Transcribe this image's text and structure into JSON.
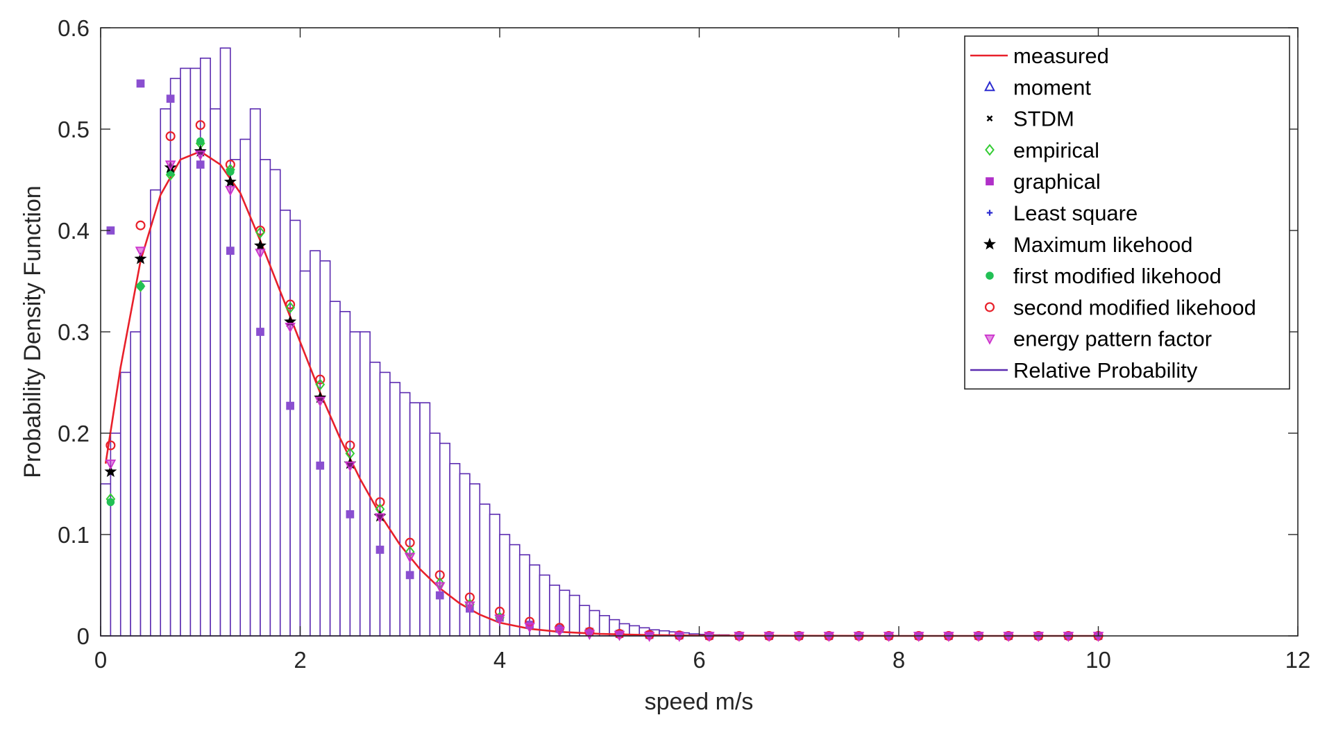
{
  "chart_data": {
    "type": "line",
    "xlabel": "speed m/s",
    "ylabel": "Probability Density Function",
    "xlim": [
      0,
      12
    ],
    "ylim": [
      0,
      0.6
    ],
    "x_ticks": [
      "0",
      "2",
      "4",
      "6",
      "8",
      "10",
      "12"
    ],
    "y_ticks": [
      "0",
      "0.1",
      "0.2",
      "0.3",
      "0.4",
      "0.5",
      "0.6"
    ],
    "grid": false,
    "legend_position": "top-right",
    "legend": [
      {
        "label": "measured",
        "symbol": "line",
        "color": "#e8202a"
      },
      {
        "label": "moment",
        "symbol": "triangle",
        "color": "#2b2bd0"
      },
      {
        "label": "STDM",
        "symbol": "x",
        "color": "#000000"
      },
      {
        "label": "empirical",
        "symbol": "diamond",
        "color": "#33cc33"
      },
      {
        "label": "graphical",
        "symbol": "square",
        "color": "#b030c8"
      },
      {
        "label": "Least square",
        "symbol": "plus",
        "color": "#2b2bd0"
      },
      {
        "label": "Maximum likehood",
        "symbol": "star",
        "color": "#000000"
      },
      {
        "label": "first modified likehood",
        "symbol": "asterisk",
        "color": "#22c055"
      },
      {
        "label": "second modified likehood",
        "symbol": "circle",
        "color": "#e8202a"
      },
      {
        "label": "energy pattern factor",
        "symbol": "triangle-down",
        "color": "#cc33cc"
      },
      {
        "label": "Relative Probability",
        "symbol": "line",
        "color": "#5b2bb0"
      }
    ],
    "histogram": {
      "name": "Relative Probability",
      "color": "#5b2bb0",
      "bin_width": 0.1,
      "bin_start": 0.0,
      "values": [
        0.15,
        0.2,
        0.26,
        0.3,
        0.35,
        0.44,
        0.52,
        0.55,
        0.56,
        0.56,
        0.57,
        0.52,
        0.58,
        0.47,
        0.49,
        0.52,
        0.47,
        0.46,
        0.42,
        0.41,
        0.36,
        0.38,
        0.37,
        0.33,
        0.32,
        0.3,
        0.3,
        0.27,
        0.26,
        0.25,
        0.24,
        0.23,
        0.23,
        0.2,
        0.19,
        0.17,
        0.16,
        0.15,
        0.13,
        0.12,
        0.1,
        0.09,
        0.08,
        0.07,
        0.06,
        0.05,
        0.045,
        0.04,
        0.03,
        0.025,
        0.02,
        0.016,
        0.012,
        0.01,
        0.008,
        0.006,
        0.005,
        0.004,
        0.003,
        0.002,
        0.0015,
        0.001,
        0.001,
        0.0005
      ]
    },
    "series": [
      {
        "name": "measured",
        "style": "line",
        "color": "#e8202a",
        "x": [
          0.05,
          0.2,
          0.4,
          0.6,
          0.8,
          1.0,
          1.2,
          1.4,
          1.6,
          1.8,
          2.0,
          2.2,
          2.4,
          2.6,
          2.8,
          3.0,
          3.2,
          3.4,
          3.6,
          3.8,
          4.0,
          4.3,
          4.6,
          5.0,
          5.5,
          6.0,
          7.0,
          8.0,
          9.0,
          10.0
        ],
        "y": [
          0.17,
          0.265,
          0.37,
          0.435,
          0.47,
          0.478,
          0.465,
          0.437,
          0.39,
          0.34,
          0.29,
          0.24,
          0.195,
          0.155,
          0.12,
          0.09,
          0.066,
          0.047,
          0.032,
          0.021,
          0.013,
          0.007,
          0.004,
          0.002,
          0.0008,
          0.0003,
          0.0001,
          0.0,
          0.0,
          0.0
        ]
      },
      {
        "name": "graphical",
        "style": "marker",
        "marker": "square",
        "color": "#8a4fd0",
        "x": [
          0.1,
          0.4,
          0.7,
          1.0,
          1.3,
          1.6,
          1.9,
          2.2,
          2.5,
          2.8,
          3.1,
          3.4,
          3.7,
          4.0,
          4.3,
          4.6,
          4.9,
          5.2,
          5.5,
          5.8,
          6.1,
          6.4,
          6.7,
          7.0,
          7.3,
          7.6,
          7.9,
          8.2,
          8.5,
          8.8,
          9.1,
          9.4,
          9.7,
          10.0
        ],
        "y": [
          0.4,
          0.545,
          0.53,
          0.465,
          0.38,
          0.3,
          0.227,
          0.168,
          0.12,
          0.085,
          0.06,
          0.04,
          0.027,
          0.018,
          0.011,
          0.007,
          0.004,
          0.002,
          0.001,
          0.0005,
          0.0,
          0.0,
          0.0,
          0.0,
          0.0,
          0.0,
          0.0,
          0.0,
          0.0,
          0.0,
          0.0,
          0.0,
          0.0,
          0.0
        ]
      },
      {
        "name": "second modified likehood",
        "style": "marker",
        "marker": "circle",
        "color": "#e8202a",
        "x": [
          0.1,
          0.4,
          0.7,
          1.0,
          1.3,
          1.6,
          1.9,
          2.2,
          2.5,
          2.8,
          3.1,
          3.4,
          3.7,
          4.0,
          4.3,
          4.6,
          4.9,
          5.2,
          5.5,
          5.8,
          6.1,
          6.4,
          6.7,
          7.0,
          7.3,
          7.6,
          7.9,
          8.2,
          8.5,
          8.8,
          9.1,
          9.4,
          9.7,
          10.0
        ],
        "y": [
          0.188,
          0.405,
          0.493,
          0.504,
          0.465,
          0.4,
          0.327,
          0.253,
          0.188,
          0.132,
          0.092,
          0.06,
          0.038,
          0.024,
          0.014,
          0.008,
          0.004,
          0.002,
          0.001,
          0.0005,
          0.0,
          0.0,
          0.0,
          0.0,
          0.0,
          0.0,
          0.0,
          0.0,
          0.0,
          0.0,
          0.0,
          0.0,
          0.0,
          0.0
        ]
      },
      {
        "name": "empirical",
        "style": "marker",
        "marker": "diamond",
        "color": "#33cc33",
        "x": [
          0.1,
          0.4,
          0.7,
          1.0,
          1.3,
          1.6,
          1.9,
          2.2,
          2.5,
          2.8,
          3.1,
          3.4,
          3.7,
          4.0
        ],
        "y": [
          0.135,
          0.345,
          0.455,
          0.486,
          0.46,
          0.398,
          0.324,
          0.248,
          0.18,
          0.125,
          0.083,
          0.052,
          0.031,
          0.018
        ]
      },
      {
        "name": "first modified likehood",
        "style": "marker",
        "marker": "asterisk",
        "color": "#22c055",
        "x": [
          0.1,
          0.4,
          0.7,
          1.0,
          1.3
        ],
        "y": [
          0.132,
          0.345,
          0.457,
          0.488,
          0.458
        ]
      },
      {
        "name": "Maximum likehood",
        "style": "marker",
        "marker": "star",
        "color": "#000000",
        "x": [
          0.1,
          0.4,
          0.7,
          1.0,
          1.3,
          1.6,
          1.9,
          2.2,
          2.5,
          2.8
        ],
        "y": [
          0.162,
          0.372,
          0.462,
          0.478,
          0.448,
          0.385,
          0.31,
          0.235,
          0.17,
          0.118
        ]
      },
      {
        "name": "energy pattern factor",
        "style": "marker",
        "marker": "triangle-down",
        "color": "#cc33cc",
        "x": [
          0.1,
          0.4,
          0.7,
          1.0,
          1.3,
          1.6,
          1.9,
          2.2,
          2.5,
          2.8,
          3.1,
          3.4,
          3.7,
          4.0,
          4.3,
          4.6,
          4.9,
          5.2,
          5.5,
          5.8,
          6.1,
          6.4,
          6.7,
          7.0,
          7.3,
          7.6,
          7.9,
          8.2,
          8.5,
          8.8,
          9.1,
          9.4,
          9.7,
          10.0
        ],
        "y": [
          0.17,
          0.38,
          0.465,
          0.475,
          0.44,
          0.378,
          0.305,
          0.232,
          0.168,
          0.117,
          0.078,
          0.049,
          0.03,
          0.017,
          0.009,
          0.005,
          0.002,
          0.001,
          0.0,
          0.0,
          0.0,
          0.0,
          0.0,
          0.0,
          0.0,
          0.0,
          0.0,
          0.0,
          0.0,
          0.0,
          0.0,
          0.0,
          0.0,
          0.0
        ]
      }
    ]
  }
}
